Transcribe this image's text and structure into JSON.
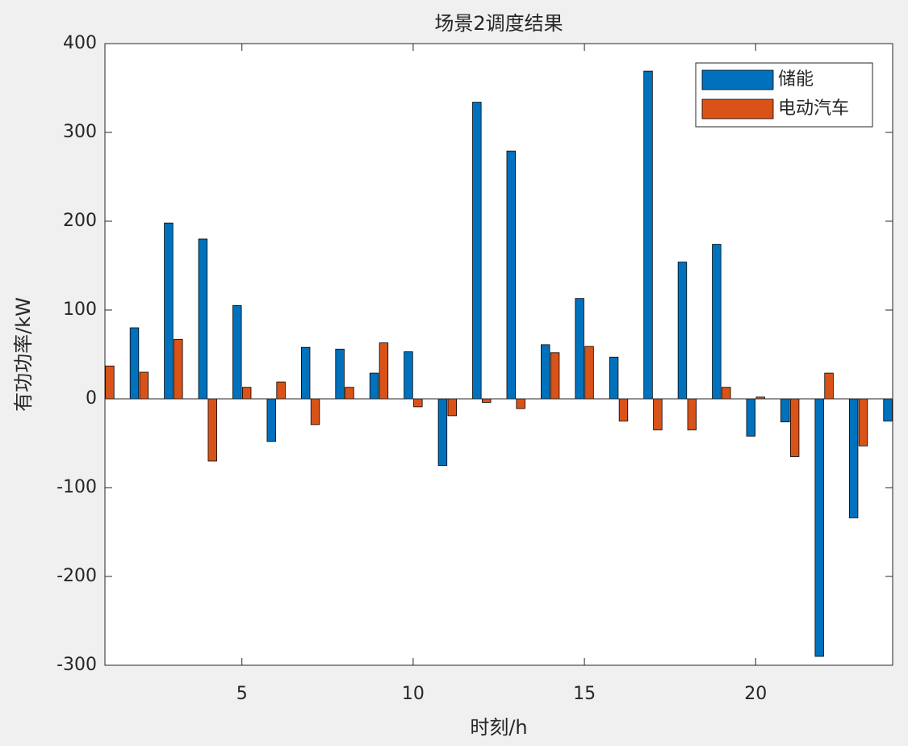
{
  "chart_data": {
    "type": "bar",
    "title": "场景2调度结果",
    "x_label": "时刻/h",
    "y_label": "有功功率/kW",
    "x": [
      1,
      2,
      3,
      4,
      5,
      6,
      7,
      8,
      9,
      10,
      11,
      12,
      13,
      14,
      15,
      16,
      17,
      18,
      19,
      20,
      21,
      22,
      23,
      24
    ],
    "series": [
      {
        "name": "储能",
        "color": "#0072BD",
        "values": [
          null,
          80,
          198,
          180,
          105,
          -48,
          58,
          56,
          29,
          53,
          -75,
          334,
          279,
          61,
          113,
          47,
          369,
          154,
          174,
          -42,
          -26,
          -290,
          -134,
          -25
        ]
      },
      {
        "name": "电动汽车",
        "color": "#D95319",
        "values": [
          37,
          30,
          67,
          -70,
          13,
          19,
          -29,
          13,
          63,
          -9,
          -19,
          -4,
          -11,
          52,
          59,
          -25,
          -35,
          -35,
          13,
          2,
          -65,
          29,
          -53,
          null
        ]
      }
    ],
    "xlim": [
      1,
      24
    ],
    "xticks": [
      5,
      10,
      15,
      20
    ],
    "ylim": [
      -300,
      400
    ],
    "yticks": [
      -300,
      -200,
      -100,
      0,
      100,
      200,
      300,
      400
    ],
    "legend": "top-right"
  }
}
